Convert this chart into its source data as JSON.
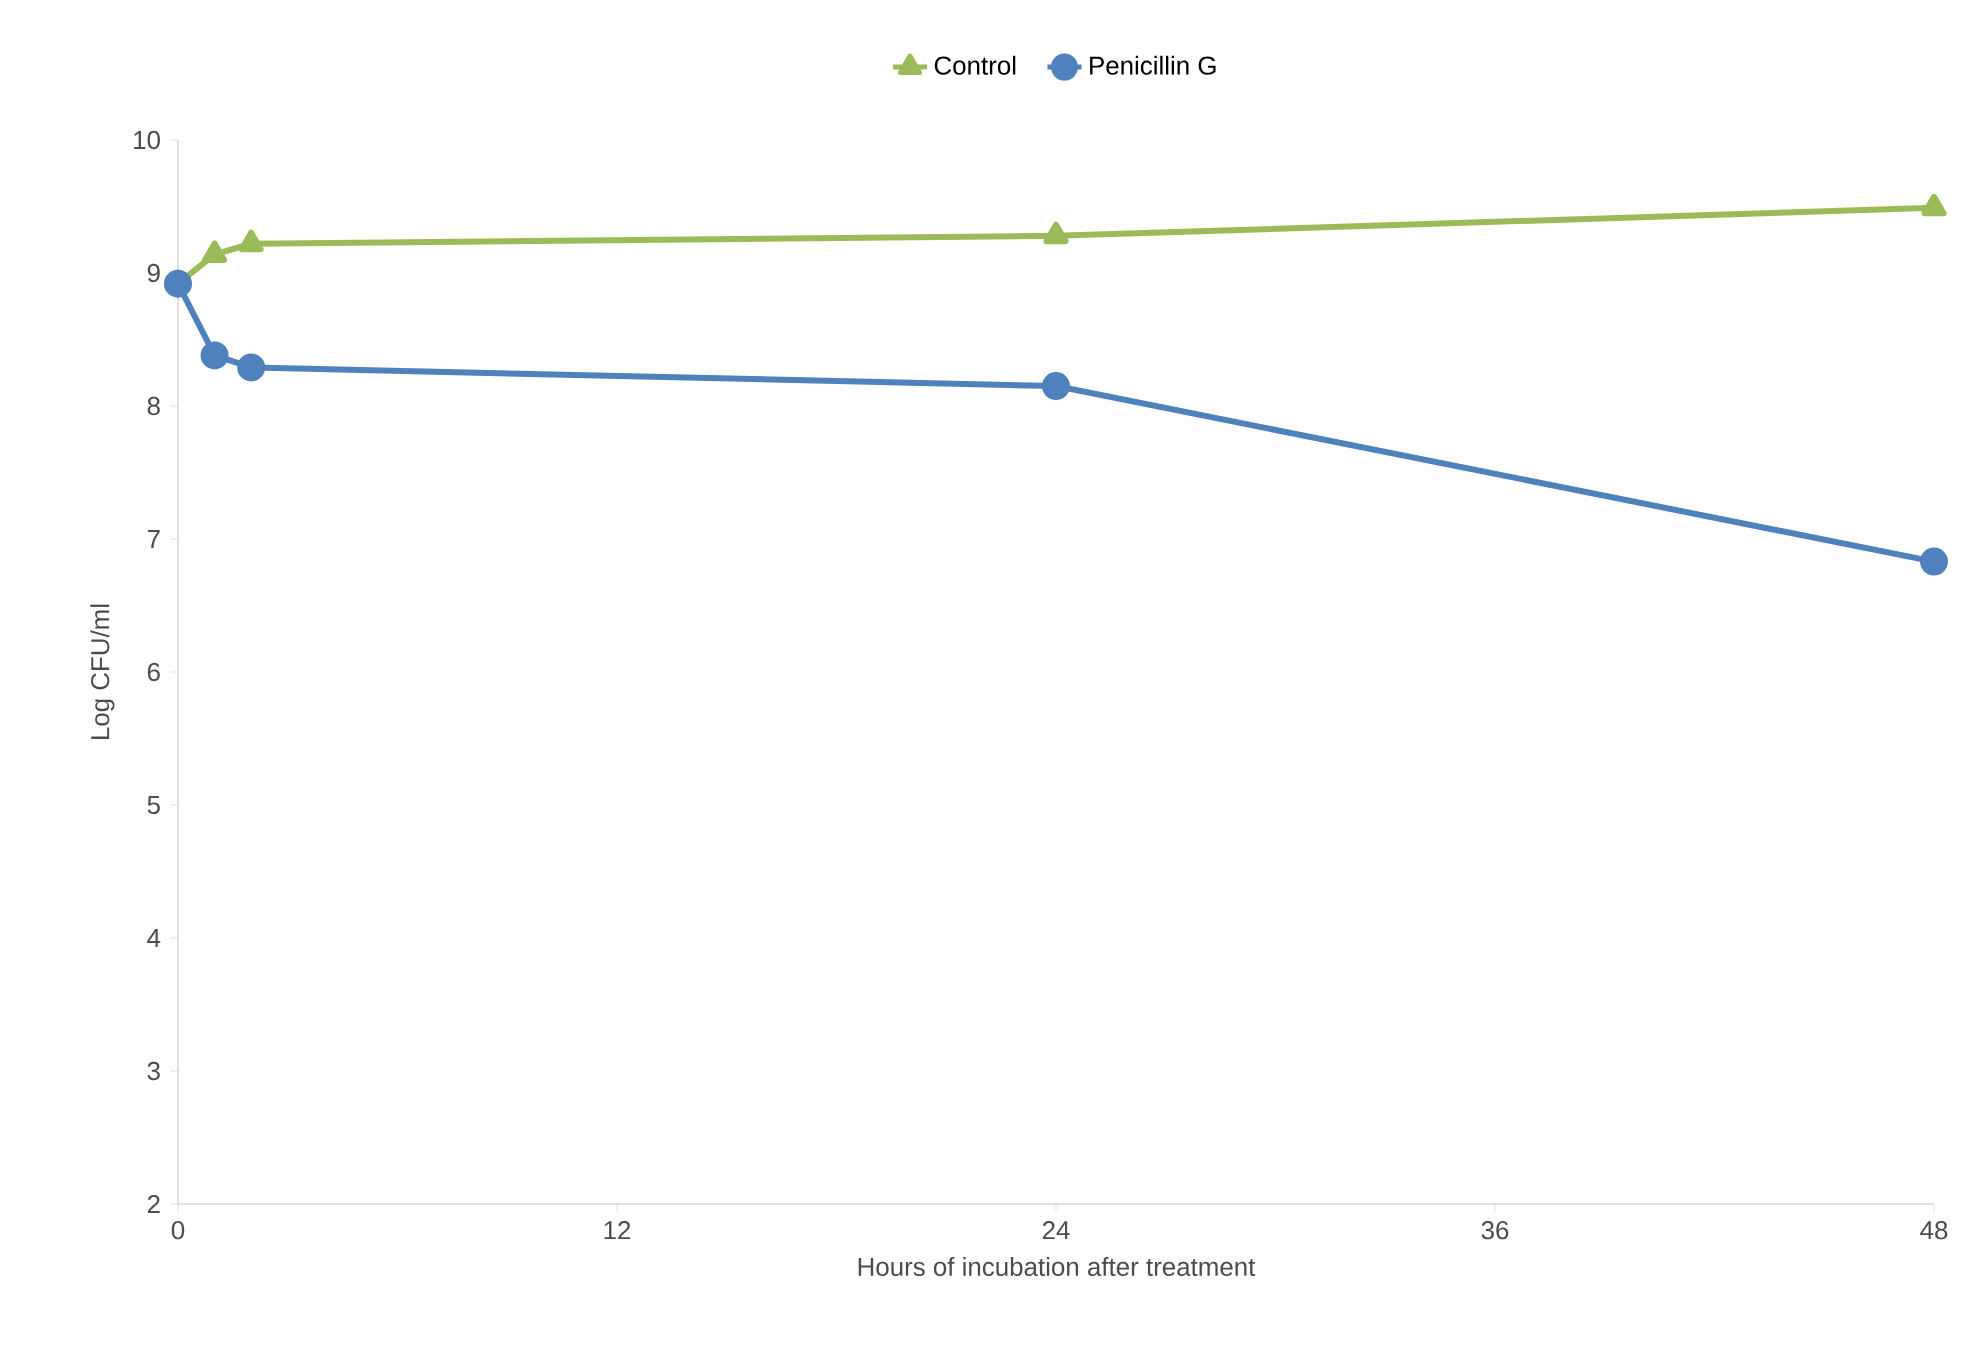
{
  "chart_data": {
    "type": "line",
    "xlabel": "Hours of incubation after treatment",
    "ylabel": "Log CFU/ml",
    "x": [
      0,
      1,
      2,
      24,
      48
    ],
    "series": [
      {
        "name": "Control",
        "color": "#9bbb59",
        "marker": "triangle",
        "values": [
          8.92,
          9.14,
          9.22,
          9.28,
          9.49
        ]
      },
      {
        "name": "Penicillin G",
        "color": "#4f81bd",
        "marker": "circle",
        "values": [
          8.92,
          8.38,
          8.29,
          8.15,
          6.83
        ]
      }
    ],
    "xlim": [
      0,
      48
    ],
    "xticks": [
      0,
      12,
      24,
      36,
      48
    ],
    "ylim": [
      2,
      10
    ],
    "yticks": [
      2,
      3,
      4,
      5,
      6,
      7,
      8,
      9,
      10
    ],
    "grid": false,
    "legend": "top",
    "line_style": "solid"
  }
}
